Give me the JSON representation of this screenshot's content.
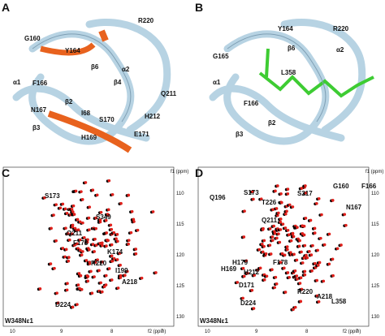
{
  "panels": [
    {
      "letter": "A",
      "labels": [
        "G160",
        "R220",
        "Y164",
        "β6",
        "α2",
        "α1",
        "F166",
        "β4",
        "Q211",
        "β2",
        "N167",
        "I68",
        "S170",
        "H212",
        "β3",
        "H169",
        "E171"
      ]
    },
    {
      "letter": "B",
      "labels": [
        "G165",
        "Y164",
        "R220",
        "β6",
        "α1",
        "L358",
        "α2",
        "F166",
        "β2",
        "β3"
      ]
    },
    {
      "letter": "C",
      "labels": [
        "S173",
        "S349",
        "Q211",
        "F178",
        "K174",
        "R220",
        "I199",
        "A218",
        "D224",
        "W348Nε1"
      ],
      "xticks": [
        "10",
        "9",
        "8",
        "7"
      ],
      "yticks": [
        "110",
        "115",
        "120",
        "125",
        "130"
      ],
      "xlabel": "f2 (ppm)",
      "ylabel": "f1 (ppm)"
    },
    {
      "letter": "D",
      "labels": [
        "G160",
        "F166",
        "S173",
        "S217",
        "Q196",
        "T226",
        "N167",
        "Q211",
        "H179",
        "H169",
        "H212",
        "F178",
        "D171",
        "R220",
        "A218",
        "D224",
        "L358",
        "W348Nε1"
      ],
      "xticks": [
        "10",
        "9",
        "8",
        "7"
      ],
      "yticks": [
        "110",
        "115",
        "120",
        "125",
        "130"
      ],
      "xlabel": "f2 (ppm)",
      "ylabel": "f1 (ppm)"
    }
  ]
}
